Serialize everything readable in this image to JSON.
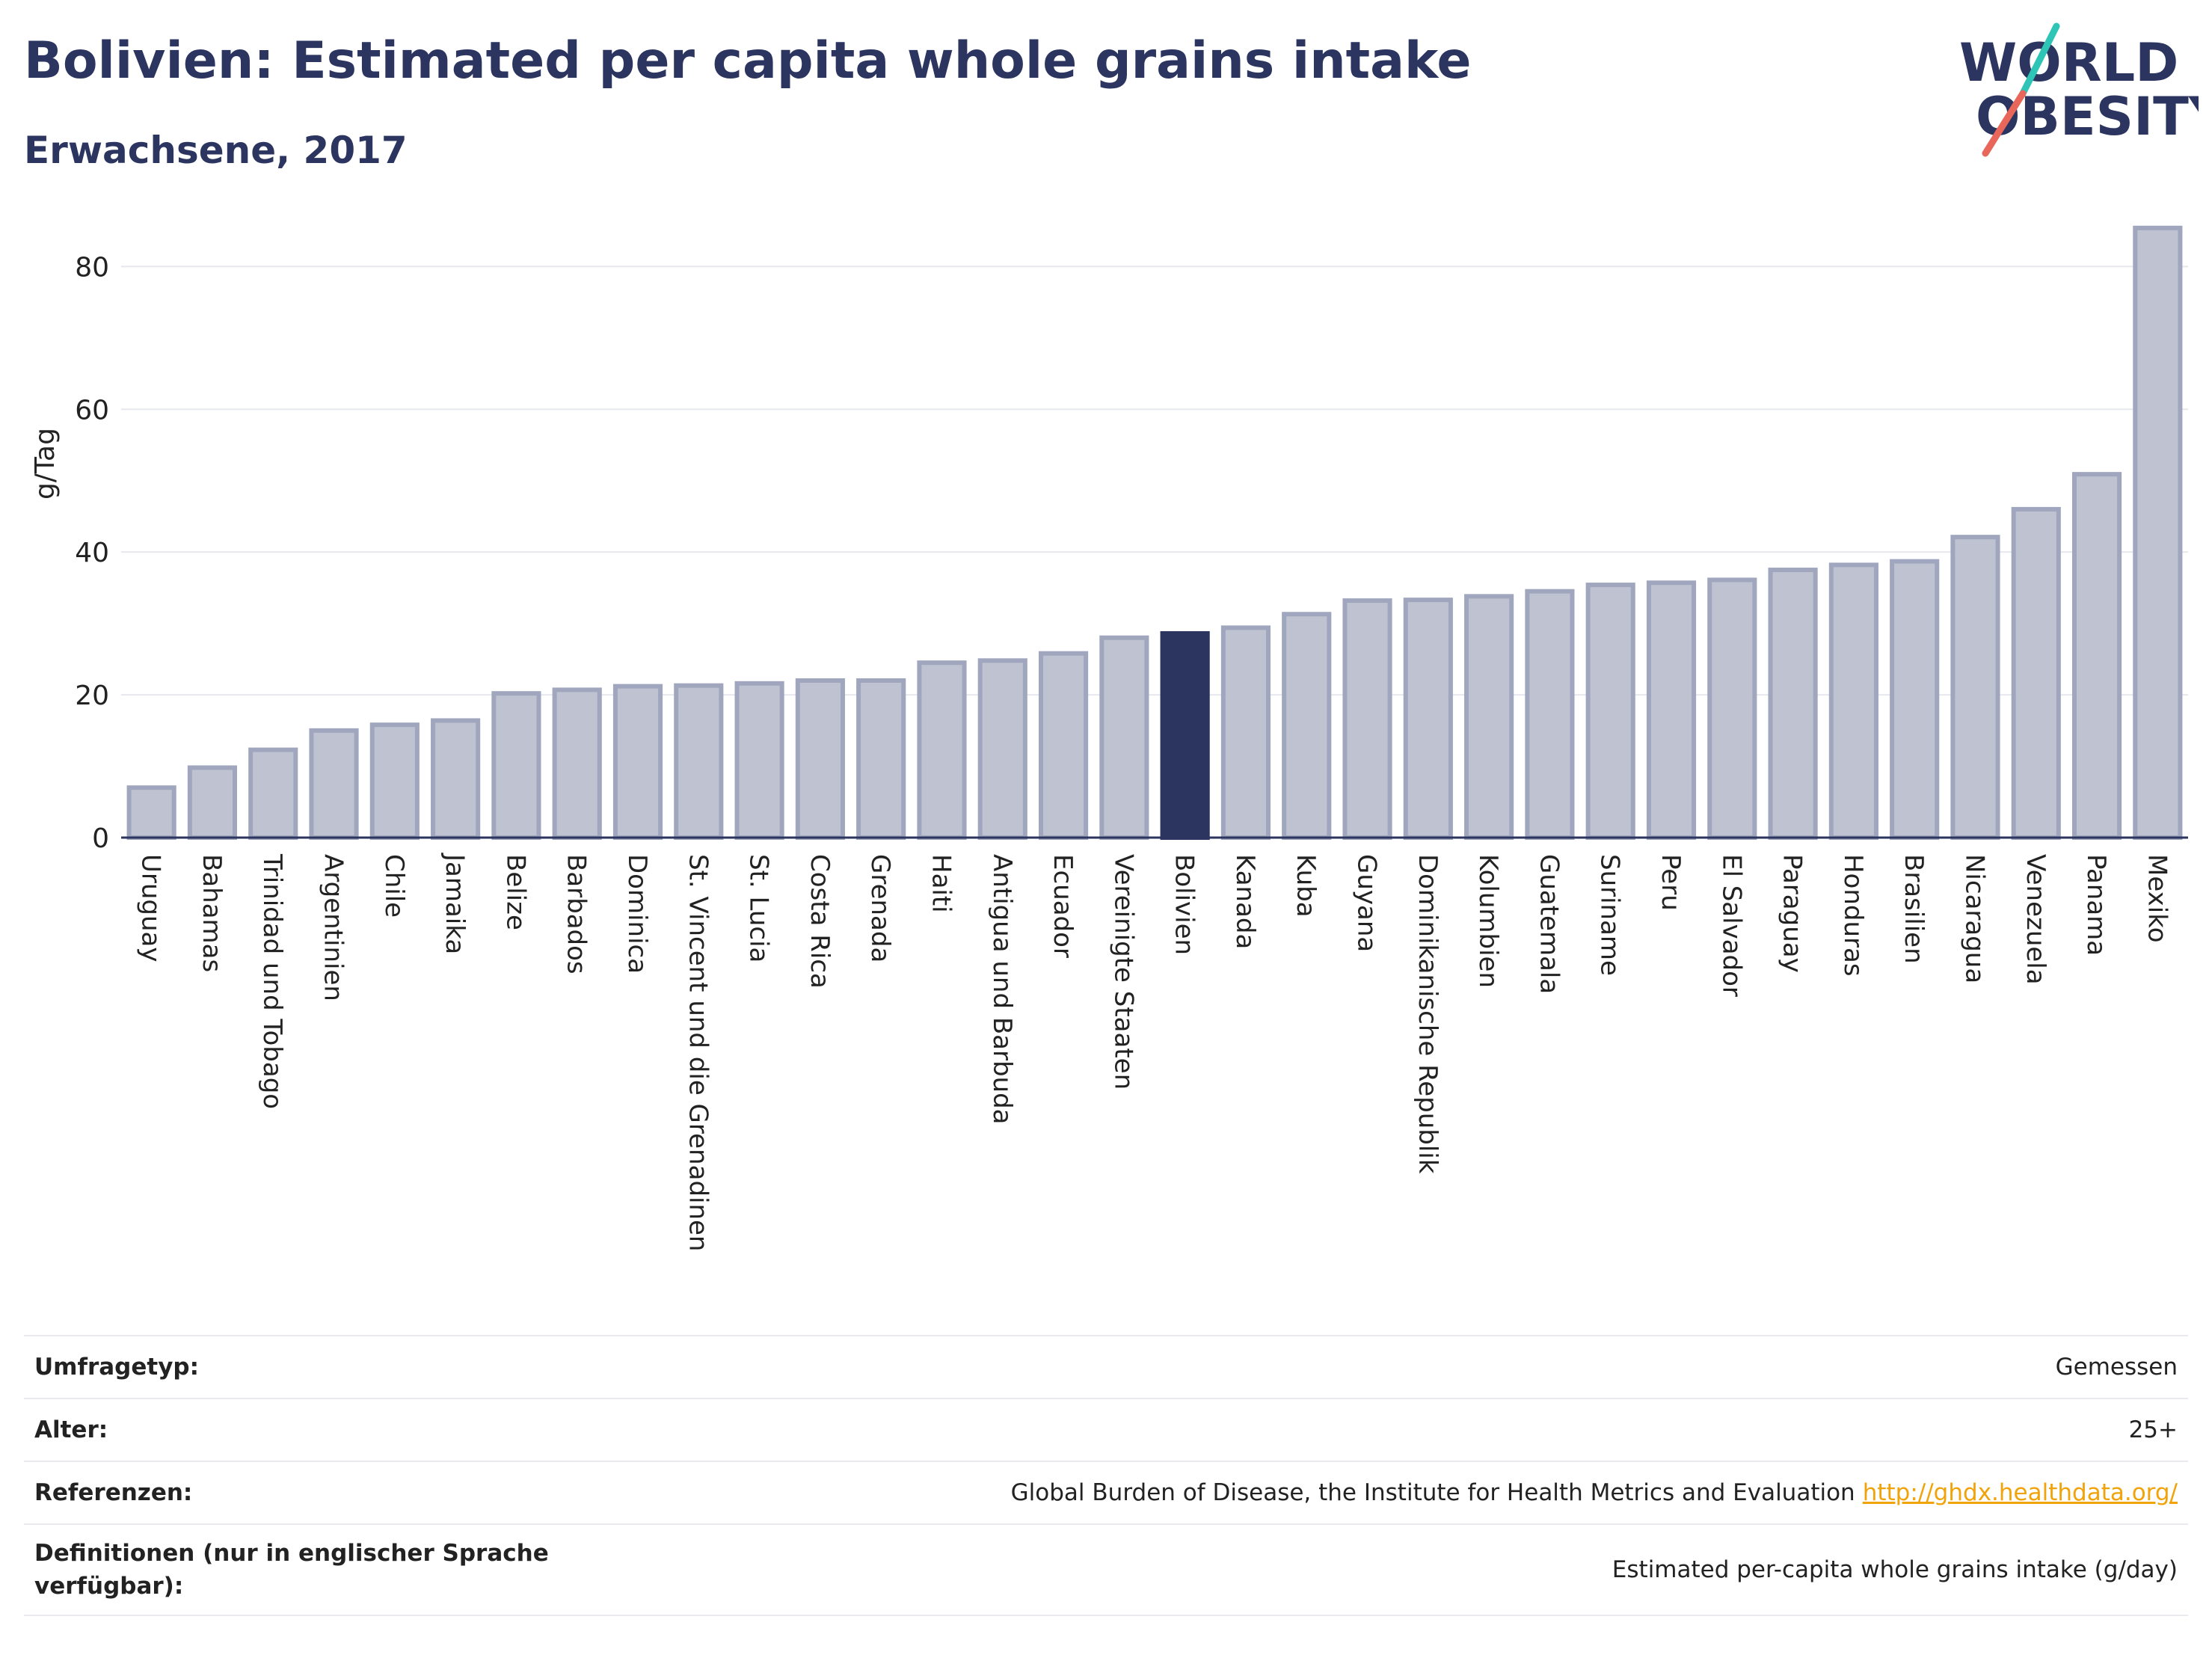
{
  "header": {
    "title": "Bolivien: Estimated per capita whole grains intake",
    "subtitle": "Erwachsene, 2017"
  },
  "logo": {
    "line1": "WORLD",
    "line2": "OBESITY",
    "colors": {
      "text": "#2b3560",
      "teal": "#2ec4b6",
      "coral": "#e8665a"
    }
  },
  "chart_data": {
    "type": "bar",
    "ylabel": "g/Tag",
    "ylim": [
      0,
      88
    ],
    "yticks": [
      0,
      20,
      40,
      60,
      80
    ],
    "grid": true,
    "highlight": "Bolivien",
    "colors": {
      "bar": "#bfc3d1",
      "bar_stroke": "#a0a6bd",
      "highlight": "#2b3560"
    },
    "categories": [
      "Uruguay",
      "Bahamas",
      "Trinidad und Tobago",
      "Argentinien",
      "Chile",
      "Jamaika",
      "Belize",
      "Barbados",
      "Dominica",
      "St. Vincent und die Grenadinen",
      "St. Lucia",
      "Costa Rica",
      "Grenada",
      "Haiti",
      "Antigua und Barbuda",
      "Ecuador",
      "Vereinigte Staaten",
      "Bolivien",
      "Kanada",
      "Kuba",
      "Guyana",
      "Dominikanische Republik",
      "Kolumbien",
      "Guatemala",
      "Suriname",
      "Peru",
      "El Salvador",
      "Paraguay",
      "Honduras",
      "Brasilien",
      "Nicaragua",
      "Venezuela",
      "Panama",
      "Mexiko"
    ],
    "values": [
      7.0,
      9.8,
      12.3,
      15.0,
      15.8,
      16.4,
      20.2,
      20.7,
      21.2,
      21.3,
      21.6,
      22.0,
      22.0,
      24.5,
      24.8,
      25.8,
      28.0,
      28.6,
      29.4,
      31.3,
      33.2,
      33.3,
      33.8,
      34.5,
      35.4,
      35.7,
      36.1,
      37.5,
      38.2,
      38.7,
      42.1,
      46.0,
      50.9,
      85.4
    ]
  },
  "info_table": [
    {
      "label": "Umfragetyp:",
      "value": "Gemessen",
      "link": ""
    },
    {
      "label": "Alter:",
      "value": "25+",
      "link": ""
    },
    {
      "label": "Referenzen:",
      "value": "Global Burden of Disease, the Institute for Health Metrics and Evaluation",
      "link": "http://ghdx.healthdata.org/"
    },
    {
      "label": "Definitionen (nur in englischer Sprache verfügbar):",
      "value": "Estimated per-capita whole grains intake (g/day)",
      "link": ""
    }
  ]
}
